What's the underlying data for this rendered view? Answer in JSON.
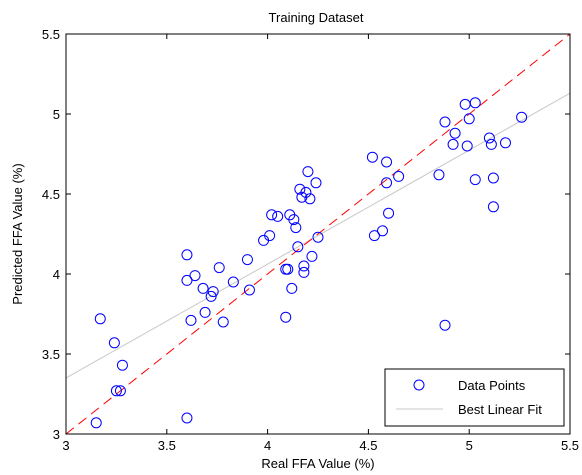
{
  "chart_data": {
    "type": "scatter",
    "title": "Training Dataset",
    "xlabel": "Real FFA Value (%)",
    "ylabel": "Predicted FFA Value (%)",
    "xlim": [
      3,
      5.5
    ],
    "ylim": [
      3,
      5.5
    ],
    "xticks": [
      3,
      3.5,
      4,
      4.5,
      5,
      5.5
    ],
    "yticks": [
      3,
      3.5,
      4,
      4.5,
      5,
      5.5
    ],
    "xtick_labels": [
      "3",
      "3.5",
      "4",
      "4.5",
      "5",
      "5.5"
    ],
    "ytick_labels": [
      "3",
      "3.5",
      "4",
      "4.5",
      "5",
      "5.5"
    ],
    "grid": false,
    "legend_position": "bottom-right",
    "series": [
      {
        "name": "Data Points",
        "marker": "circle",
        "color": "#0000ff",
        "points": [
          [
            3.15,
            3.07
          ],
          [
            3.17,
            3.72
          ],
          [
            3.24,
            3.57
          ],
          [
            3.25,
            3.27
          ],
          [
            3.27,
            3.27
          ],
          [
            3.28,
            3.43
          ],
          [
            3.6,
            3.1
          ],
          [
            3.6,
            4.12
          ],
          [
            3.6,
            3.96
          ],
          [
            3.62,
            3.71
          ],
          [
            3.64,
            3.99
          ],
          [
            3.68,
            3.91
          ],
          [
            3.69,
            3.76
          ],
          [
            3.72,
            3.86
          ],
          [
            3.73,
            3.89
          ],
          [
            3.76,
            4.04
          ],
          [
            3.78,
            3.7
          ],
          [
            3.83,
            3.95
          ],
          [
            3.9,
            4.09
          ],
          [
            3.91,
            3.9
          ],
          [
            3.98,
            4.21
          ],
          [
            4.01,
            4.24
          ],
          [
            4.02,
            4.37
          ],
          [
            4.05,
            4.36
          ],
          [
            4.09,
            4.03
          ],
          [
            4.1,
            4.03
          ],
          [
            4.09,
            3.73
          ],
          [
            4.11,
            4.37
          ],
          [
            4.12,
            3.91
          ],
          [
            4.13,
            4.34
          ],
          [
            4.14,
            4.29
          ],
          [
            4.15,
            4.17
          ],
          [
            4.16,
            4.53
          ],
          [
            4.17,
            4.48
          ],
          [
            4.18,
            4.05
          ],
          [
            4.18,
            4.01
          ],
          [
            4.19,
            4.51
          ],
          [
            4.2,
            4.64
          ],
          [
            4.21,
            4.47
          ],
          [
            4.22,
            4.11
          ],
          [
            4.24,
            4.57
          ],
          [
            4.25,
            4.23
          ],
          [
            4.52,
            4.73
          ],
          [
            4.53,
            4.24
          ],
          [
            4.57,
            4.27
          ],
          [
            4.59,
            4.7
          ],
          [
            4.59,
            4.57
          ],
          [
            4.6,
            4.38
          ],
          [
            4.65,
            4.61
          ],
          [
            4.85,
            4.62
          ],
          [
            4.88,
            4.95
          ],
          [
            4.88,
            3.68
          ],
          [
            4.92,
            4.81
          ],
          [
            4.93,
            4.88
          ],
          [
            4.98,
            5.06
          ],
          [
            4.99,
            4.8
          ],
          [
            5.0,
            4.97
          ],
          [
            5.03,
            5.07
          ],
          [
            5.03,
            4.59
          ],
          [
            5.1,
            4.85
          ],
          [
            5.11,
            4.81
          ],
          [
            5.12,
            4.6
          ],
          [
            5.12,
            4.42
          ],
          [
            5.18,
            4.82
          ],
          [
            5.26,
            4.98
          ]
        ]
      },
      {
        "name": "Best Linear Fit",
        "style": "line",
        "color": "#c8c8c8",
        "x": [
          3,
          5.5
        ],
        "y": [
          3.35,
          5.13
        ]
      },
      {
        "style": "dashed",
        "color": "#ff0000",
        "x": [
          3,
          5.5
        ],
        "y": [
          3,
          5.5
        ]
      }
    ]
  }
}
